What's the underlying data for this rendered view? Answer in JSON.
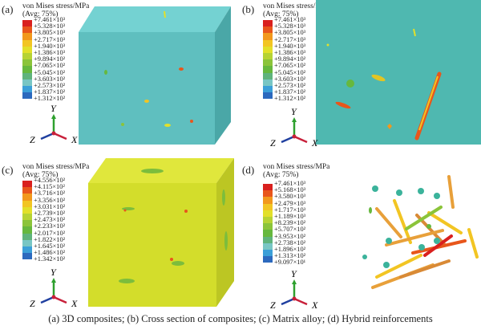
{
  "colors": {
    "bands": [
      "#d9201e",
      "#e8561b",
      "#f2981c",
      "#f2c523",
      "#e2e02a",
      "#b6d334",
      "#8bc43a",
      "#66b83e",
      "#5fb37c",
      "#78c6c4",
      "#3b9fd8",
      "#2c69be",
      "#22409a"
    ],
    "composite": "#5fbfbf",
    "matrix": "#d3dd2b",
    "section": "#4fb8b0"
  },
  "panels": [
    {
      "label": "(a)",
      "title": "von Mises stress/MPa",
      "avg": "(Avg: 75%)",
      "ticks": [
        "+7.461×10³",
        "+5.328×10³",
        "+3.805×10³",
        "+2.717×10³",
        "+1.940×10³",
        "+1.386×10³",
        "+9.894×10²",
        "+7.065×10²",
        "+5.045×10²",
        "+3.603×10²",
        "+2.573×10²",
        "+1.837×10²",
        "+1.312×10²"
      ]
    },
    {
      "label": "(b)",
      "title": "von Mises stress/MPa",
      "avg": "(Avg: 75%)",
      "ticks": [
        "+7.461×10³",
        "+5.328×10³",
        "+3.805×10³",
        "+2.717×10³",
        "+1.940×10³",
        "+1.386×10³",
        "+9.894×10²",
        "+7.065×10²",
        "+5.045×10²",
        "+3.603×10²",
        "+2.573×10²",
        "+1.837×10²",
        "+1.312×10²"
      ]
    },
    {
      "label": "(c)",
      "title": "von Mises stress/MPa",
      "avg": "(Avg: 75%)",
      "ticks": [
        "+4.556×10²",
        "+4.115×10²",
        "+3.716×10²",
        "+3.356×10²",
        "+3.031×10²",
        "+2.739×10²",
        "+2.473×10²",
        "+2.233×10²",
        "+2.017×10²",
        "+1.822×10²",
        "+1.645×10²",
        "+1.486×10²",
        "+1.342×10²"
      ]
    },
    {
      "label": "(d)",
      "title": "von Mises stress/MPa",
      "avg": "(Avg: 75%)",
      "ticks": [
        "+7.461×10³",
        "+5.168×10³",
        "+3.580×10³",
        "+2.479×10³",
        "+1.717×10³",
        "+1.189×10³",
        "+8.239×10²",
        "+5.707×10²",
        "+3.953×10²",
        "+2.738×10²",
        "+1.896×10²",
        "+1.313×10²",
        "+9.097×10¹"
      ]
    }
  ],
  "axes": {
    "x": "X",
    "y": "Y",
    "z": "Z"
  },
  "caption": "(a) 3D composites; (b) Cross section of composites; (c) Matrix alloy; (d) Hybrid reinforcements"
}
